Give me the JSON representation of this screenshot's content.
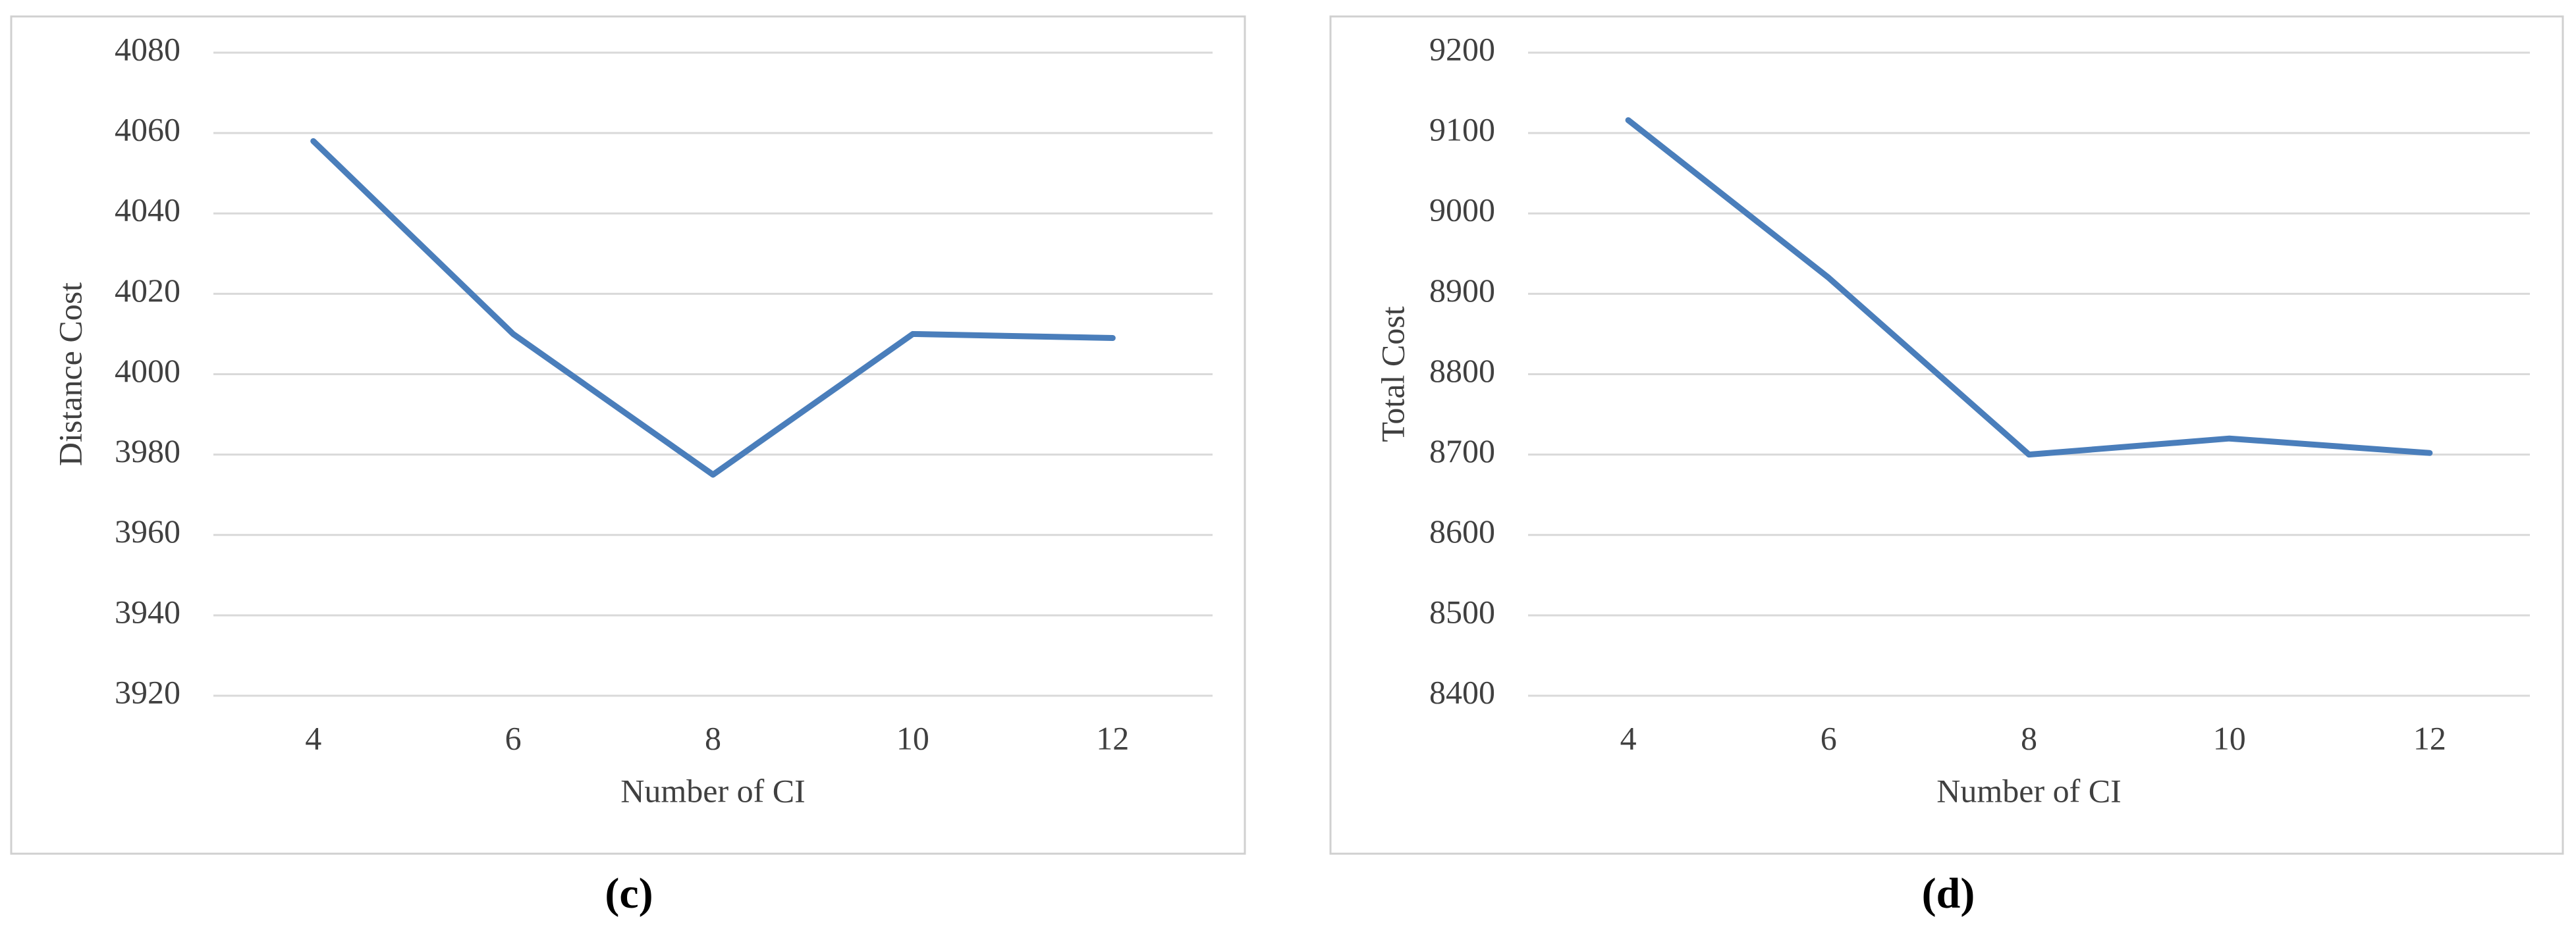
{
  "chart_data": [
    {
      "type": "line",
      "caption": "(c)",
      "x_label": "Number of CI",
      "y_label": "Distance Cost",
      "categories": [
        "4",
        "6",
        "8",
        "10",
        "12"
      ],
      "values": [
        4058,
        4010,
        3975,
        4010,
        4009
      ],
      "color": "#4a7ebb",
      "ylim": [
        3920,
        4080
      ],
      "yticks": [
        3920,
        3940,
        3960,
        3980,
        4000,
        4020,
        4040,
        4060,
        4080
      ],
      "grid": true
    },
    {
      "type": "line",
      "caption": "(d)",
      "x_label": "Number of CI",
      "y_label": "Total Cost",
      "categories": [
        "4",
        "6",
        "8",
        "10",
        "12"
      ],
      "values": [
        9116,
        8920,
        8700,
        8720,
        8702
      ],
      "color": "#4a7ebb",
      "ylim": [
        8400,
        9200
      ],
      "yticks": [
        8400,
        8500,
        8600,
        8700,
        8800,
        8900,
        9000,
        9100,
        9200
      ],
      "grid": true
    }
  ]
}
